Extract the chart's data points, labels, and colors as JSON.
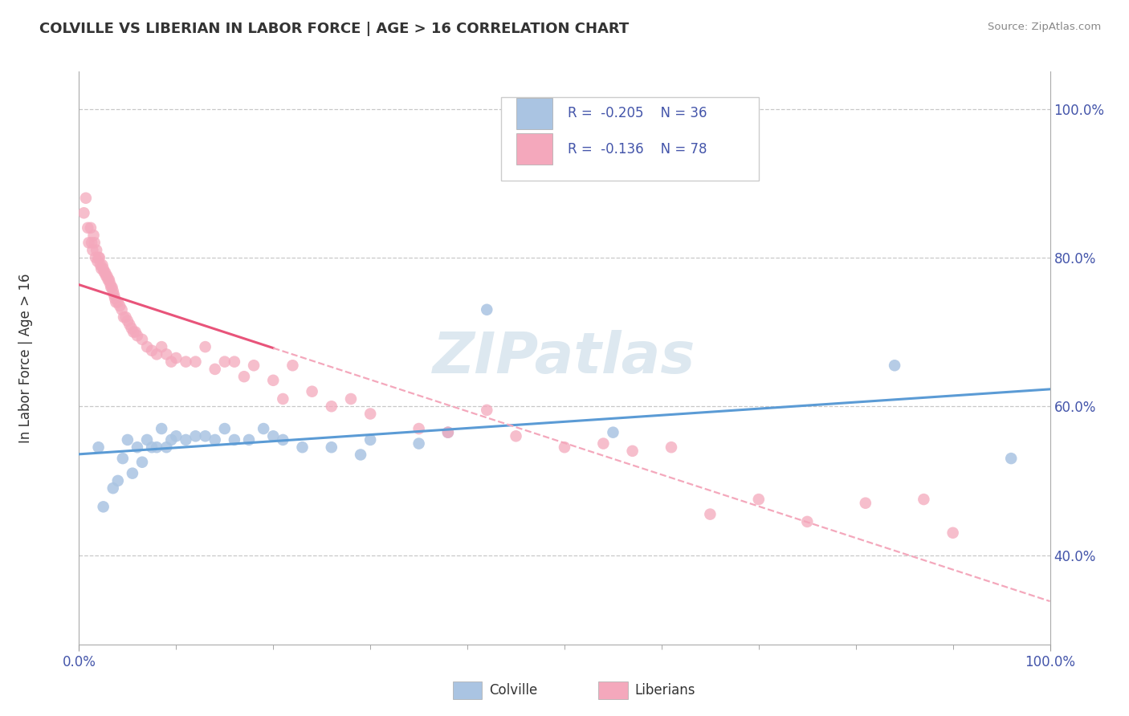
{
  "title": "COLVILLE VS LIBERIAN IN LABOR FORCE | AGE > 16 CORRELATION CHART",
  "source_text": "Source: ZipAtlas.com",
  "ylabel": "In Labor Force | Age > 16",
  "xlim": [
    0.0,
    1.0
  ],
  "ylim": [
    0.28,
    1.05
  ],
  "y_tick_values": [
    0.4,
    0.6,
    0.8,
    1.0
  ],
  "colville_R": -0.205,
  "colville_N": 36,
  "liberian_R": -0.136,
  "liberian_N": 78,
  "colville_color": "#aac4e2",
  "liberian_color": "#f4a8bc",
  "colville_line_color": "#5b9bd5",
  "liberian_line_color": "#e8547a",
  "liberian_dash_color": "#f4a8bc",
  "grid_color": "#c8c8c8",
  "background_color": "#ffffff",
  "watermark_text": "ZIPatlas",
  "legend_text_color": "#4455aa",
  "colville_points": [
    [
      0.02,
      0.545
    ],
    [
      0.025,
      0.465
    ],
    [
      0.035,
      0.49
    ],
    [
      0.04,
      0.5
    ],
    [
      0.045,
      0.53
    ],
    [
      0.05,
      0.555
    ],
    [
      0.055,
      0.51
    ],
    [
      0.06,
      0.545
    ],
    [
      0.065,
      0.525
    ],
    [
      0.07,
      0.555
    ],
    [
      0.075,
      0.545
    ],
    [
      0.08,
      0.545
    ],
    [
      0.085,
      0.57
    ],
    [
      0.09,
      0.545
    ],
    [
      0.095,
      0.555
    ],
    [
      0.1,
      0.56
    ],
    [
      0.11,
      0.555
    ],
    [
      0.12,
      0.56
    ],
    [
      0.13,
      0.56
    ],
    [
      0.14,
      0.555
    ],
    [
      0.15,
      0.57
    ],
    [
      0.16,
      0.555
    ],
    [
      0.175,
      0.555
    ],
    [
      0.19,
      0.57
    ],
    [
      0.2,
      0.56
    ],
    [
      0.21,
      0.555
    ],
    [
      0.23,
      0.545
    ],
    [
      0.26,
      0.545
    ],
    [
      0.29,
      0.535
    ],
    [
      0.3,
      0.555
    ],
    [
      0.35,
      0.55
    ],
    [
      0.38,
      0.565
    ],
    [
      0.42,
      0.73
    ],
    [
      0.55,
      0.565
    ],
    [
      0.84,
      0.655
    ],
    [
      0.96,
      0.53
    ]
  ],
  "liberian_points": [
    [
      0.005,
      0.86
    ],
    [
      0.007,
      0.88
    ],
    [
      0.009,
      0.84
    ],
    [
      0.01,
      0.82
    ],
    [
      0.012,
      0.84
    ],
    [
      0.013,
      0.82
    ],
    [
      0.014,
      0.81
    ],
    [
      0.015,
      0.83
    ],
    [
      0.016,
      0.82
    ],
    [
      0.017,
      0.8
    ],
    [
      0.018,
      0.81
    ],
    [
      0.019,
      0.795
    ],
    [
      0.02,
      0.8
    ],
    [
      0.021,
      0.8
    ],
    [
      0.022,
      0.79
    ],
    [
      0.023,
      0.785
    ],
    [
      0.024,
      0.79
    ],
    [
      0.025,
      0.785
    ],
    [
      0.026,
      0.78
    ],
    [
      0.027,
      0.78
    ],
    [
      0.028,
      0.775
    ],
    [
      0.029,
      0.775
    ],
    [
      0.03,
      0.77
    ],
    [
      0.031,
      0.77
    ],
    [
      0.032,
      0.765
    ],
    [
      0.033,
      0.76
    ],
    [
      0.034,
      0.76
    ],
    [
      0.035,
      0.755
    ],
    [
      0.036,
      0.75
    ],
    [
      0.037,
      0.745
    ],
    [
      0.038,
      0.74
    ],
    [
      0.04,
      0.74
    ],
    [
      0.042,
      0.735
    ],
    [
      0.044,
      0.73
    ],
    [
      0.046,
      0.72
    ],
    [
      0.048,
      0.72
    ],
    [
      0.05,
      0.715
    ],
    [
      0.052,
      0.71
    ],
    [
      0.054,
      0.705
    ],
    [
      0.056,
      0.7
    ],
    [
      0.058,
      0.7
    ],
    [
      0.06,
      0.695
    ],
    [
      0.065,
      0.69
    ],
    [
      0.07,
      0.68
    ],
    [
      0.075,
      0.675
    ],
    [
      0.08,
      0.67
    ],
    [
      0.085,
      0.68
    ],
    [
      0.09,
      0.67
    ],
    [
      0.095,
      0.66
    ],
    [
      0.1,
      0.665
    ],
    [
      0.11,
      0.66
    ],
    [
      0.12,
      0.66
    ],
    [
      0.13,
      0.68
    ],
    [
      0.14,
      0.65
    ],
    [
      0.15,
      0.66
    ],
    [
      0.16,
      0.66
    ],
    [
      0.17,
      0.64
    ],
    [
      0.18,
      0.655
    ],
    [
      0.2,
      0.635
    ],
    [
      0.21,
      0.61
    ],
    [
      0.22,
      0.655
    ],
    [
      0.24,
      0.62
    ],
    [
      0.26,
      0.6
    ],
    [
      0.28,
      0.61
    ],
    [
      0.3,
      0.59
    ],
    [
      0.35,
      0.57
    ],
    [
      0.38,
      0.565
    ],
    [
      0.42,
      0.595
    ],
    [
      0.45,
      0.56
    ],
    [
      0.5,
      0.545
    ],
    [
      0.54,
      0.55
    ],
    [
      0.57,
      0.54
    ],
    [
      0.61,
      0.545
    ],
    [
      0.65,
      0.455
    ],
    [
      0.7,
      0.475
    ],
    [
      0.75,
      0.445
    ],
    [
      0.81,
      0.47
    ],
    [
      0.87,
      0.475
    ],
    [
      0.9,
      0.43
    ]
  ]
}
